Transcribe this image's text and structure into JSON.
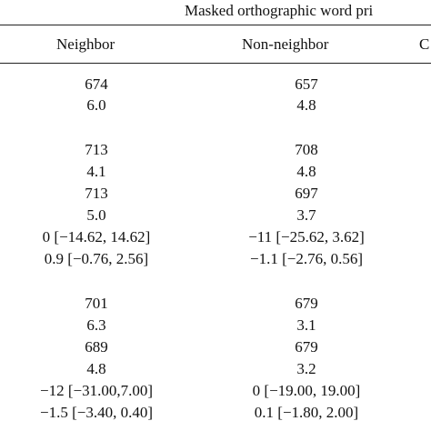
{
  "table": {
    "caption": "Masked orthographic word pri",
    "headers": [
      "Neighbor",
      "Non-neighbor",
      "C"
    ],
    "rows": [
      [
        "674",
        "657"
      ],
      [
        "6.0",
        "4.8"
      ],
      [
        "713",
        "708"
      ],
      [
        "4.1",
        "4.8"
      ],
      [
        "713",
        "697"
      ],
      [
        "5.0",
        "3.7"
      ],
      [
        "0 [−14.62, 14.62]",
        "−11 [−25.62, 3.62]"
      ],
      [
        "0.9 [−0.76, 2.56]",
        "−1.1 [−2.76, 0.56]"
      ],
      [
        "701",
        "679"
      ],
      [
        "6.3",
        "3.1"
      ],
      [
        "689",
        "679"
      ],
      [
        "4.8",
        "3.2"
      ],
      [
        "−12 [−31.00,7.00]",
        "0 [−19.00, 19.00]"
      ],
      [
        "−1.5 [−3.40, 0.40]",
        "0.1 [−1.80, 2.00]"
      ]
    ]
  }
}
